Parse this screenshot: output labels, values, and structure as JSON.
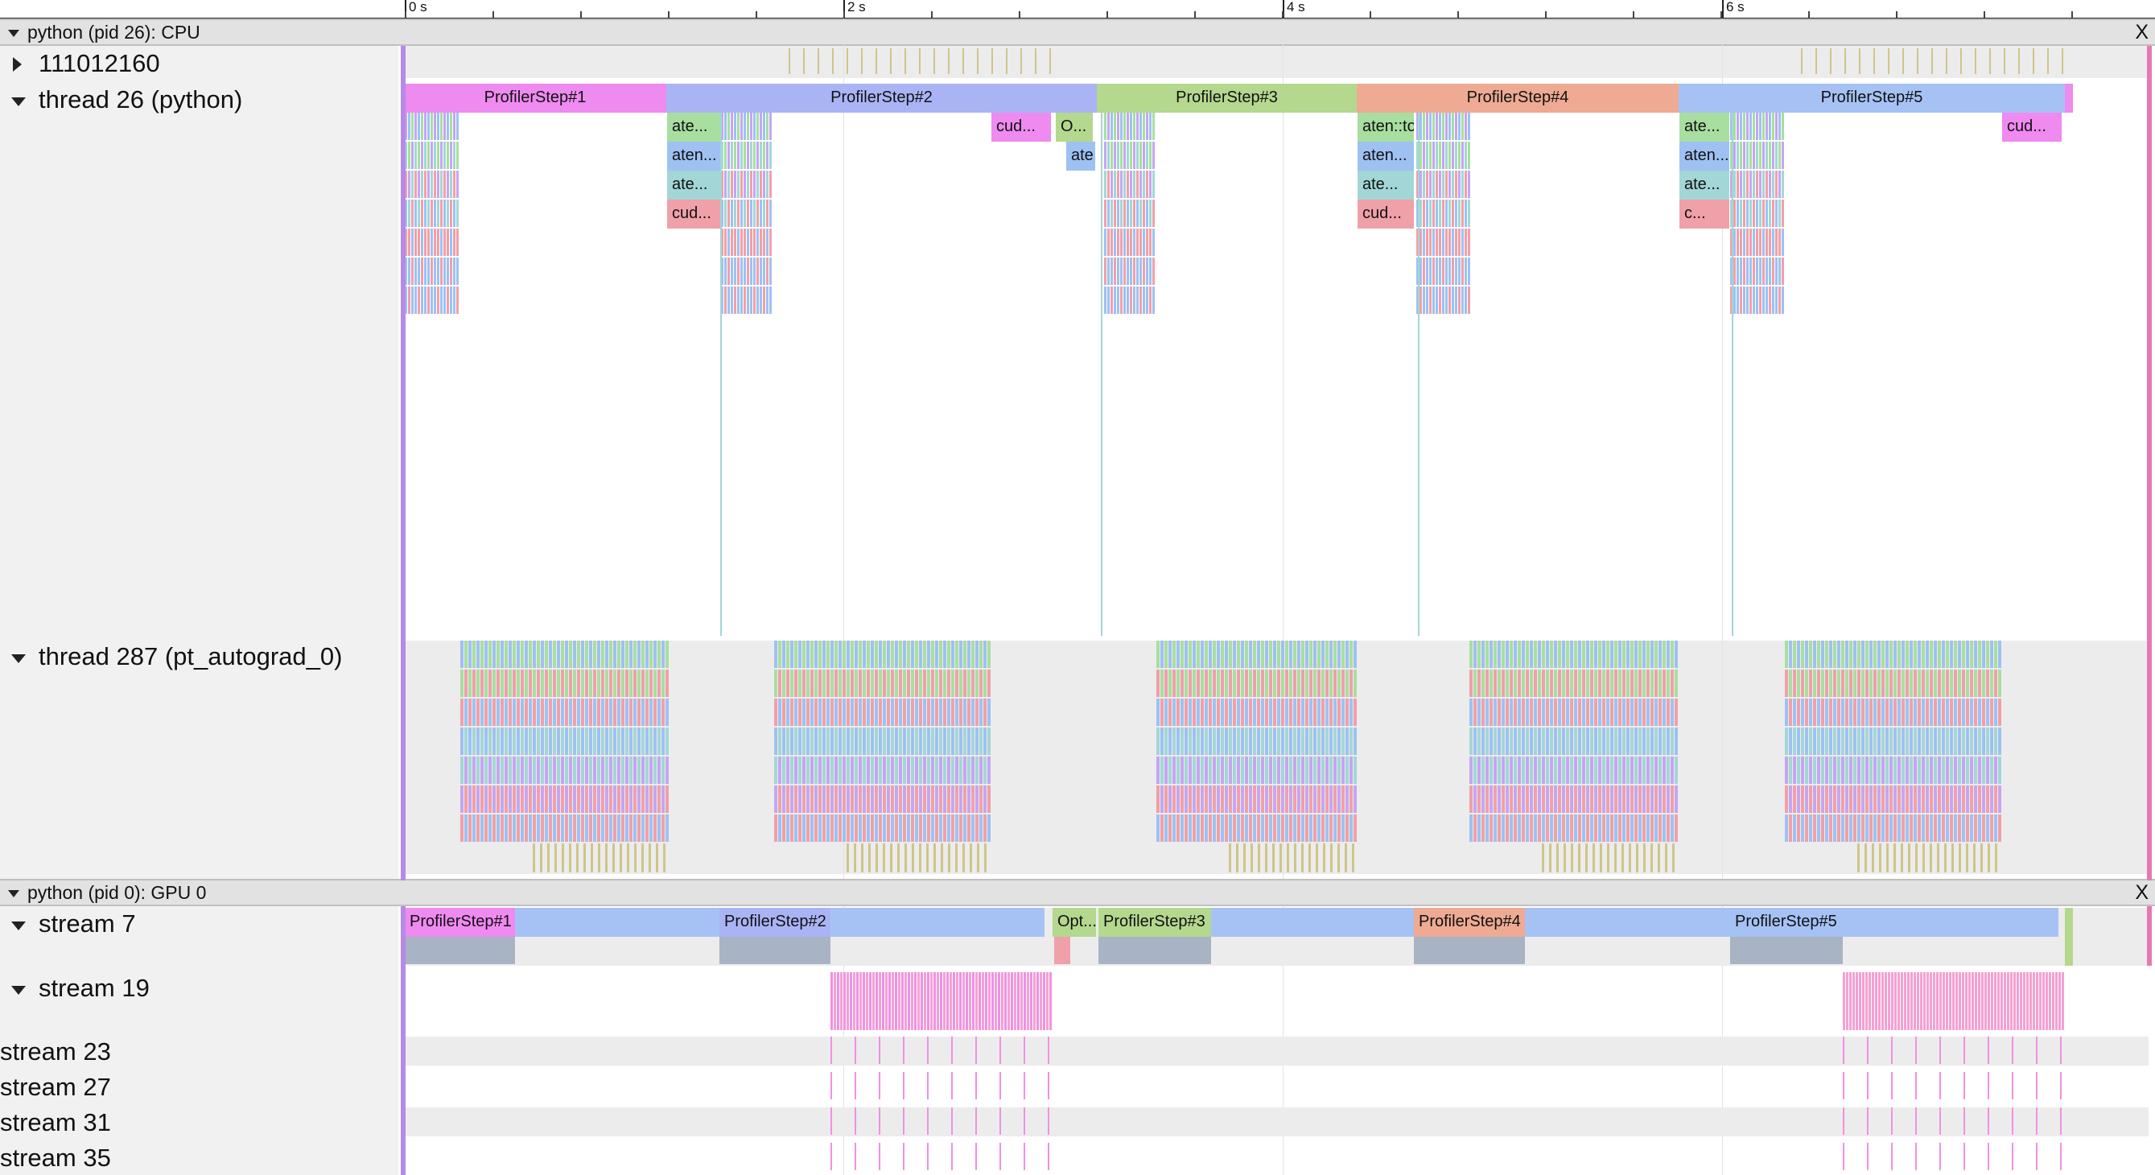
{
  "ruler": {
    "labels": [
      "0 s",
      "2 s",
      "4 s",
      "6 s"
    ]
  },
  "cpu_process": {
    "title": "python (pid 26): CPU",
    "close_label": "X",
    "tracks": {
      "counter": "111012160",
      "main_thread": "thread 26 (python)",
      "autograd_thread": "thread 287 (pt_autograd_0)"
    },
    "profiler_steps": [
      "ProfilerStep#1",
      "ProfilerStep#2",
      "ProfilerStep#3",
      "ProfilerStep#4",
      "ProfilerStep#5"
    ],
    "sub_slices": {
      "s2_a": "ate...",
      "s2_b": "aten...",
      "s2_c": "ate...",
      "s2_d": "cud...",
      "s2_cud": "cud...",
      "s2_opt": "O...",
      "s2_ate": "ate",
      "s4_a": "aten::to",
      "s4_b": "aten...",
      "s4_c": "ate...",
      "s4_d": "cud...",
      "s5_a": "ate...",
      "s5_b": "aten...",
      "s5_c": "ate...",
      "s5_d": "c...",
      "s5_cud": "cud..."
    }
  },
  "gpu_process": {
    "title": "python (pid 0): GPU 0",
    "close_label": "X",
    "streams": [
      "stream 7",
      "stream 19",
      "stream 23",
      "stream 27",
      "stream 31",
      "stream 35"
    ],
    "stream7_slices": [
      "ProfilerStep#1",
      "ProfilerStep#2",
      "Opt...",
      "ProfilerStep#3",
      "ProfilerStep#4",
      "ProfilerStep#5"
    ]
  },
  "colors": {
    "step1": "#ee8af0",
    "step2": "#aab4f5",
    "step3": "#b4d88e",
    "step4": "#eeaa92",
    "step5": "#a6c2f5",
    "blue": "#9ec1f2",
    "green": "#a8dea0",
    "red": "#f0a0a8",
    "purple": "#c4a6f2",
    "teal": "#a3d6d6",
    "magenta": "#f090e6",
    "olive": "#cfc58a",
    "gray_bar": "#a8b4c4",
    "pink_edge": "#e878b4",
    "purple_edge": "#b58ae8"
  }
}
